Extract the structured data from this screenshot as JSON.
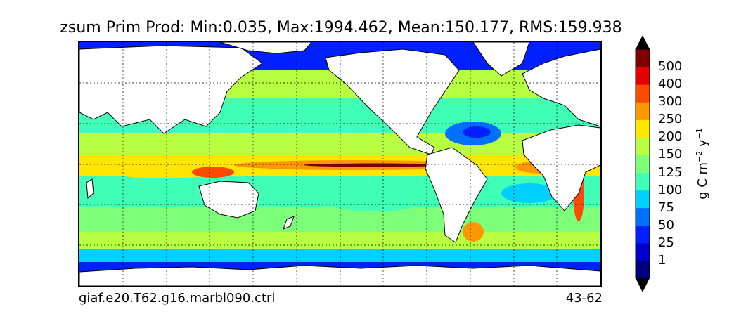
{
  "title": "zsum Prim Prod: Min:0.035, Max:1994.462, Mean:150.177, RMS:159.938",
  "footer_left": "giaf.e20.T62.g16.marbl090.ctrl",
  "footer_right": "43-62",
  "colorbar": {
    "label_base": "g C m",
    "label_exp1": "−2",
    "label_mid": " y",
    "label_exp2": "−1",
    "levels": [
      "1",
      "25",
      "50",
      "75",
      "100",
      "125",
      "150",
      "200",
      "250",
      "300",
      "400",
      "500"
    ],
    "colors": [
      "#00007f",
      "#0000cd",
      "#0020ff",
      "#0070ff",
      "#00d0ff",
      "#40ffb7",
      "#7dff7a",
      "#b7ff40",
      "#ffe600",
      "#ff9800",
      "#ff4a00",
      "#e30000",
      "#7f0000"
    ],
    "extend": "both"
  },
  "map": {
    "projection": "equirectangular",
    "land_color": "#ffffff",
    "graticule": "dotted"
  }
}
